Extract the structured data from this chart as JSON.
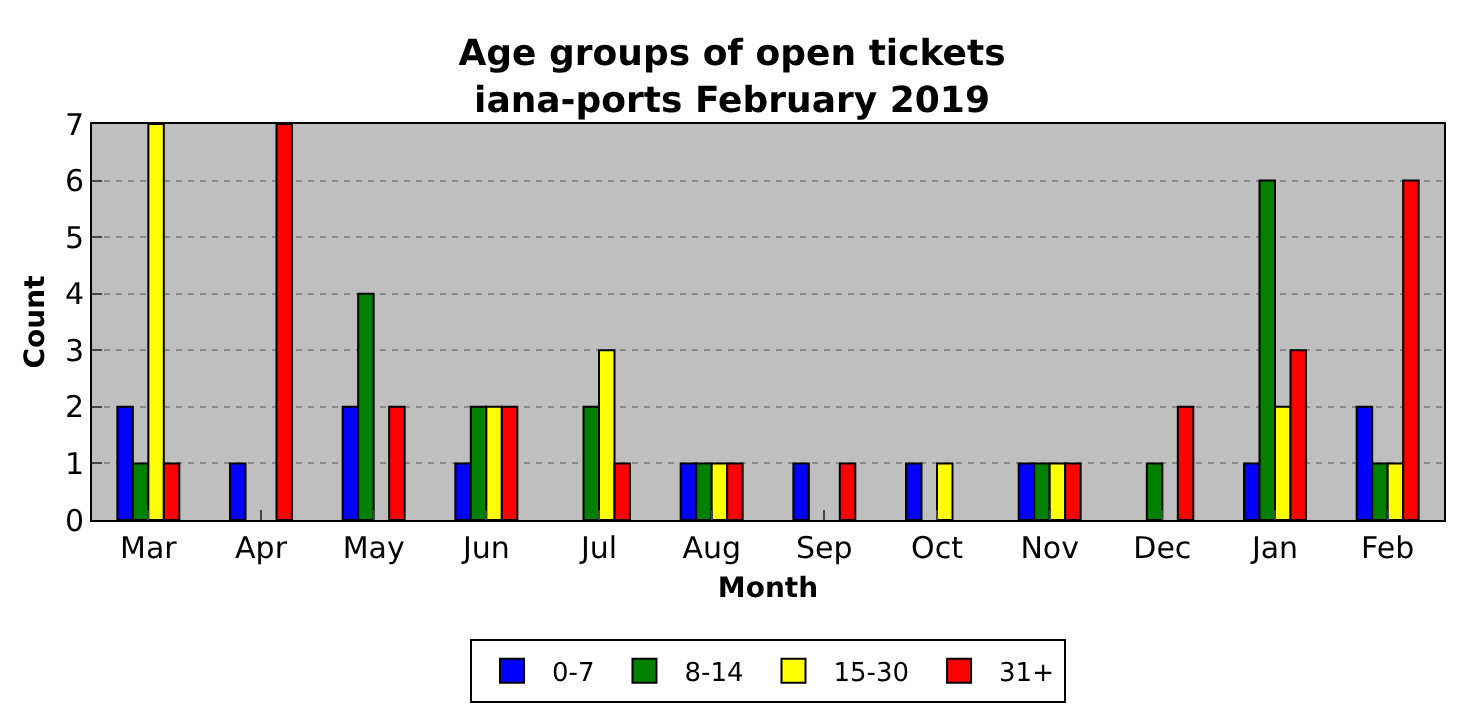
{
  "chart_data": {
    "type": "bar",
    "title": "Age groups of open tickets\niana-ports February 2019",
    "xlabel": "Month",
    "ylabel": "Count",
    "categories": [
      "Mar",
      "Apr",
      "May",
      "Jun",
      "Jul",
      "Aug",
      "Sep",
      "Oct",
      "Nov",
      "Dec",
      "Jan",
      "Feb"
    ],
    "series": [
      {
        "name": "0-7",
        "color": "#0000ff",
        "values": [
          2,
          1,
          2,
          1,
          0,
          1,
          1,
          1,
          1,
          0,
          1,
          2
        ]
      },
      {
        "name": "8-14",
        "color": "#008000",
        "values": [
          1,
          0,
          4,
          2,
          2,
          1,
          0,
          0,
          1,
          1,
          6,
          1
        ]
      },
      {
        "name": "15-30",
        "color": "#ffff00",
        "values": [
          7,
          0,
          0,
          2,
          3,
          1,
          0,
          1,
          1,
          0,
          2,
          1
        ]
      },
      {
        "name": "31+",
        "color": "#ff0000",
        "values": [
          1,
          7,
          2,
          2,
          1,
          1,
          1,
          0,
          1,
          2,
          3,
          6
        ]
      }
    ],
    "ylim": [
      0,
      7
    ],
    "yticks": [
      0,
      1,
      2,
      3,
      4,
      5,
      6,
      7
    ],
    "grid": "y",
    "legend": "bottom"
  }
}
